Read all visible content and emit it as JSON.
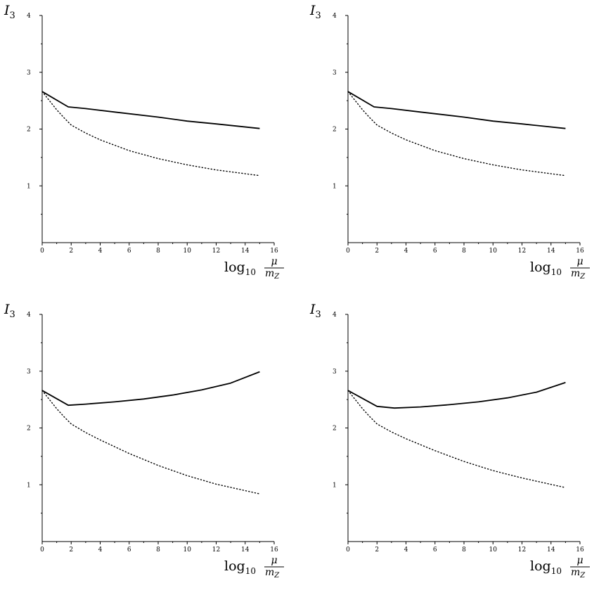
{
  "chart_data": [
    {
      "type": "line",
      "ylabel": {
        "base": "I",
        "sub": "3"
      },
      "xlabel": {
        "prefix": "log",
        "prefix_sub": "10",
        "num": "μ",
        "den_base": "m",
        "den_sub": "Z"
      },
      "xlim": [
        0,
        16
      ],
      "ylim": [
        0,
        4
      ],
      "xticks": [
        0,
        2,
        4,
        6,
        8,
        10,
        12,
        14,
        16
      ],
      "yticks": [
        1,
        2,
        3,
        4
      ],
      "grid": false,
      "series": [
        {
          "style": "solid",
          "x": [
            0,
            1.8,
            3,
            5,
            8,
            10,
            12,
            15
          ],
          "y": [
            2.66,
            2.39,
            2.36,
            2.3,
            2.21,
            2.14,
            2.09,
            2.01
          ]
        },
        {
          "style": "dotted",
          "x": [
            0,
            0.5,
            1,
            1.5,
            2,
            3,
            4,
            6,
            8,
            10,
            12,
            15
          ],
          "y": [
            2.66,
            2.5,
            2.34,
            2.2,
            2.07,
            1.93,
            1.81,
            1.62,
            1.48,
            1.37,
            1.28,
            1.18
          ]
        }
      ]
    },
    {
      "type": "line",
      "ylabel": {
        "base": "I",
        "sub": "3"
      },
      "xlabel": {
        "prefix": "log",
        "prefix_sub": "10",
        "num": "μ",
        "den_base": "m",
        "den_sub": "Z"
      },
      "xlim": [
        0,
        16
      ],
      "ylim": [
        0,
        4
      ],
      "xticks": [
        0,
        2,
        4,
        6,
        8,
        10,
        12,
        14,
        16
      ],
      "yticks": [
        1,
        2,
        3,
        4
      ],
      "grid": false,
      "series": [
        {
          "style": "solid",
          "x": [
            0,
            1.8,
            3,
            5,
            8,
            10,
            12,
            15
          ],
          "y": [
            2.66,
            2.39,
            2.36,
            2.3,
            2.21,
            2.14,
            2.09,
            2.01
          ]
        },
        {
          "style": "dotted",
          "x": [
            0,
            0.5,
            1,
            1.5,
            2,
            3,
            4,
            6,
            8,
            10,
            12,
            15
          ],
          "y": [
            2.66,
            2.5,
            2.34,
            2.2,
            2.07,
            1.93,
            1.81,
            1.62,
            1.48,
            1.37,
            1.28,
            1.18
          ]
        }
      ]
    },
    {
      "type": "line",
      "ylabel": {
        "base": "I",
        "sub": "3"
      },
      "xlabel": {
        "prefix": "log",
        "prefix_sub": "10",
        "num": "μ",
        "den_base": "m",
        "den_sub": "Z"
      },
      "xlim": [
        0,
        16
      ],
      "ylim": [
        0,
        4
      ],
      "xticks": [
        0,
        2,
        4,
        6,
        8,
        10,
        12,
        14,
        16
      ],
      "yticks": [
        1,
        2,
        3,
        4
      ],
      "grid": false,
      "series": [
        {
          "style": "solid",
          "x": [
            0,
            1.8,
            3,
            5,
            7,
            9,
            11,
            13,
            15
          ],
          "y": [
            2.66,
            2.4,
            2.42,
            2.46,
            2.51,
            2.58,
            2.67,
            2.79,
            2.99
          ]
        },
        {
          "style": "dotted",
          "x": [
            0,
            0.5,
            1,
            1.5,
            2,
            3,
            4,
            6,
            8,
            10,
            12,
            15
          ],
          "y": [
            2.66,
            2.5,
            2.34,
            2.2,
            2.07,
            1.92,
            1.79,
            1.55,
            1.34,
            1.16,
            1.01,
            0.84
          ]
        }
      ]
    },
    {
      "type": "line",
      "ylabel": {
        "base": "I",
        "sub": "3"
      },
      "xlabel": {
        "prefix": "log",
        "prefix_sub": "10",
        "num": "μ",
        "den_base": "m",
        "den_sub": "Z"
      },
      "xlim": [
        0,
        16
      ],
      "ylim": [
        0,
        4
      ],
      "xticks": [
        0,
        2,
        4,
        6,
        8,
        10,
        12,
        14,
        16
      ],
      "yticks": [
        1,
        2,
        3,
        4
      ],
      "grid": false,
      "series": [
        {
          "style": "solid",
          "x": [
            0,
            2,
            3.2,
            5,
            7,
            9,
            11,
            13,
            15
          ],
          "y": [
            2.66,
            2.38,
            2.35,
            2.37,
            2.41,
            2.46,
            2.53,
            2.63,
            2.8
          ]
        },
        {
          "style": "dotted",
          "x": [
            0,
            0.5,
            1,
            1.5,
            2,
            3,
            4,
            6,
            8,
            10,
            12,
            15
          ],
          "y": [
            2.66,
            2.5,
            2.34,
            2.2,
            2.07,
            1.93,
            1.81,
            1.6,
            1.41,
            1.25,
            1.12,
            0.95
          ]
        }
      ]
    }
  ]
}
